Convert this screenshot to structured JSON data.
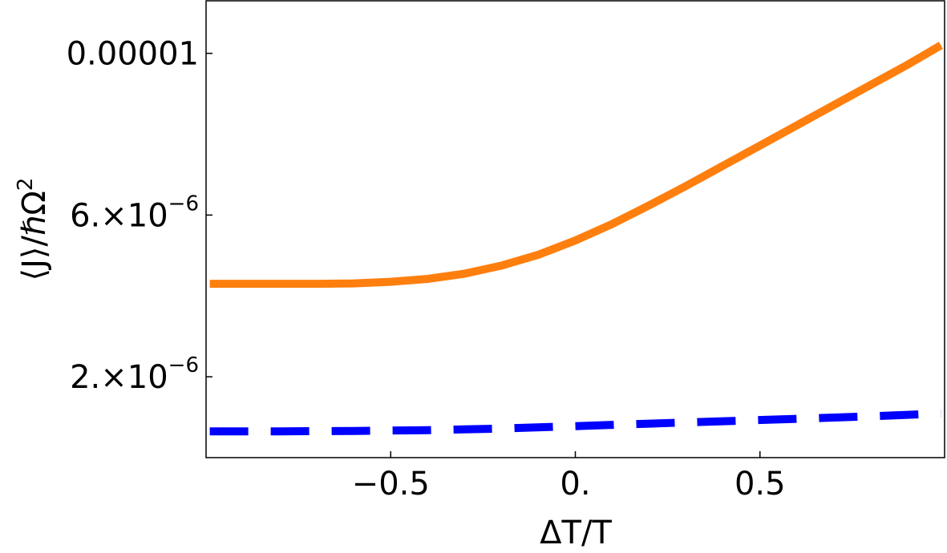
{
  "chart_data": {
    "type": "line",
    "xlabel": "ΔT/T",
    "ylabel": "⟨J⟩/ℏΩ",
    "ylabel_sup": "2",
    "xlim": [
      -1.0,
      1.0
    ],
    "ylim": [
      0,
      1.13e-05
    ],
    "xticks": [
      {
        "value": -0.5,
        "label": "−0.5"
      },
      {
        "value": 0.0,
        "label": "0."
      },
      {
        "value": 0.5,
        "label": "0.5"
      }
    ],
    "yticks": [
      {
        "value": 2e-06,
        "base": "2.×10",
        "exp": "−6"
      },
      {
        "value": 6e-06,
        "base": "6.×10",
        "exp": "−6"
      },
      {
        "value": 1e-05,
        "base": "0.00001",
        "exp": ""
      }
    ],
    "grid": false,
    "legend": "none",
    "series": [
      {
        "color": "#ff7f0e",
        "style": "solid",
        "x": [
          -0.99,
          -0.9,
          -0.8,
          -0.7,
          -0.6,
          -0.5,
          -0.4,
          -0.3,
          -0.2,
          -0.1,
          0.0,
          0.1,
          0.2,
          0.3,
          0.4,
          0.5,
          0.6,
          0.7,
          0.8,
          0.9,
          0.99
        ],
        "y": [
          4.3e-06,
          4.3e-06,
          4.3e-06,
          4.3e-06,
          4.31e-06,
          4.35e-06,
          4.42e-06,
          4.55e-06,
          4.75e-06,
          5.02e-06,
          5.37e-06,
          5.78e-06,
          6.24e-06,
          6.72e-06,
          7.22e-06,
          7.72e-06,
          8.22e-06,
          8.72e-06,
          9.22e-06,
          9.72e-06,
          1.02e-05
        ]
      },
      {
        "color": "#0000ff",
        "style": "dashed",
        "x": [
          -0.99,
          -0.8,
          -0.6,
          -0.5,
          -0.4,
          -0.2,
          0.0,
          0.2,
          0.4,
          0.6,
          0.8,
          0.99
        ],
        "y": [
          6.5e-07,
          6.5e-07,
          6.6e-07,
          6.7e-07,
          6.8e-07,
          7.2e-07,
          7.8e-07,
          8.4e-07,
          9e-07,
          9.6e-07,
          1.02e-06,
          1.09e-06
        ]
      }
    ]
  }
}
